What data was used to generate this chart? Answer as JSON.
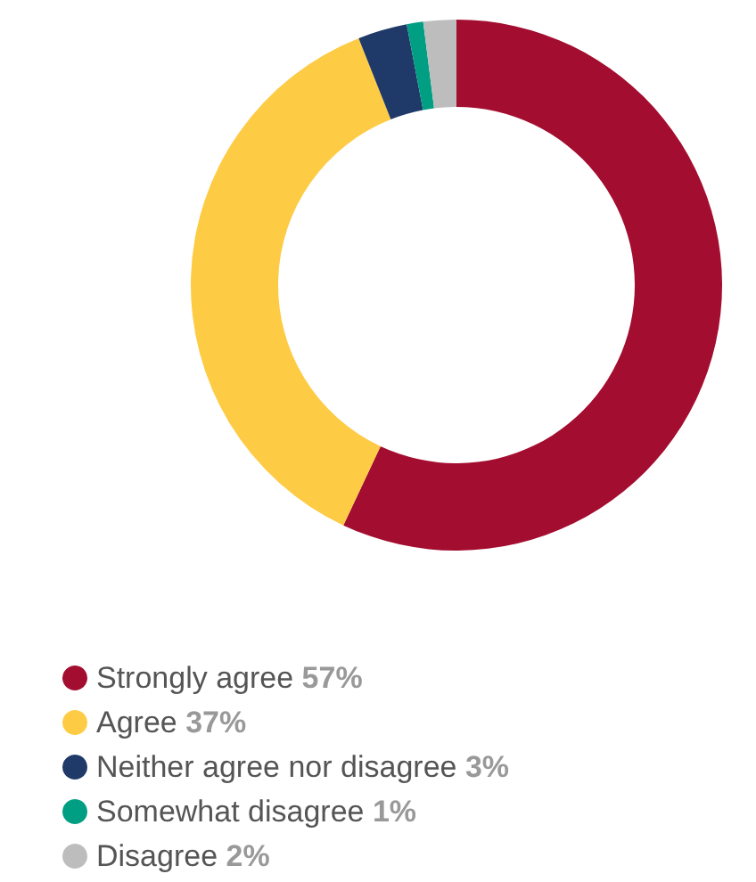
{
  "chart_data": {
    "type": "donut",
    "categories": [
      "Strongly agree",
      "Agree",
      "Neither agree nor disagree",
      "Somewhat disagree",
      "Disagree"
    ],
    "values": [
      57,
      37,
      3,
      1,
      2
    ],
    "value_labels": [
      "57%",
      "37%",
      "3%",
      "1%",
      "2%"
    ],
    "colors": [
      "#a30d2f",
      "#fecb45",
      "#1f3a68",
      "#009e82",
      "#bdbdbd"
    ],
    "legend": "bottom left"
  }
}
